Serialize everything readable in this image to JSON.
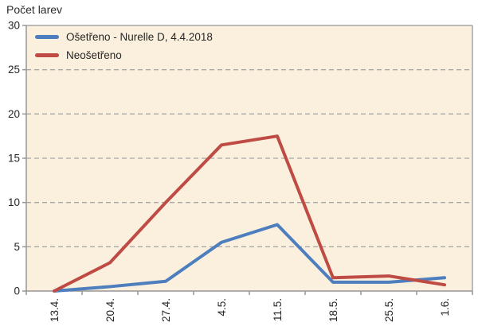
{
  "chart_data": {
    "type": "line",
    "ylabel": "Počet larev",
    "categories": [
      "13.4.",
      "20.4.",
      "27.4.",
      "4.5.",
      "11.5.",
      "18.5.",
      "25.5.",
      "1.6."
    ],
    "series": [
      {
        "name": "Ošetřeno - Nurelle D, 4.4.2018",
        "color": "#4d7ebe",
        "values": [
          0,
          0.5,
          1.1,
          5.5,
          7.5,
          1,
          1,
          1.5
        ]
      },
      {
        "name": "Neošetřeno",
        "color": "#bf4b45",
        "values": [
          0,
          3.2,
          10,
          16.5,
          17.5,
          1.5,
          1.7,
          0.7
        ]
      }
    ],
    "ylim": [
      0,
      30
    ],
    "yticks": [
      0,
      5,
      10,
      15,
      20,
      25,
      30
    ],
    "grid": "horizontal-dashed",
    "legend_position": "top-left-inside",
    "x_labels_rotated_degrees": 90,
    "colors": {
      "plot_bg": "#fbf0de",
      "axis": "#969696",
      "border": "#a6a6a6",
      "grid": "#a8a8a8",
      "text": "#262626",
      "page_bg": "#ffffff"
    }
  }
}
